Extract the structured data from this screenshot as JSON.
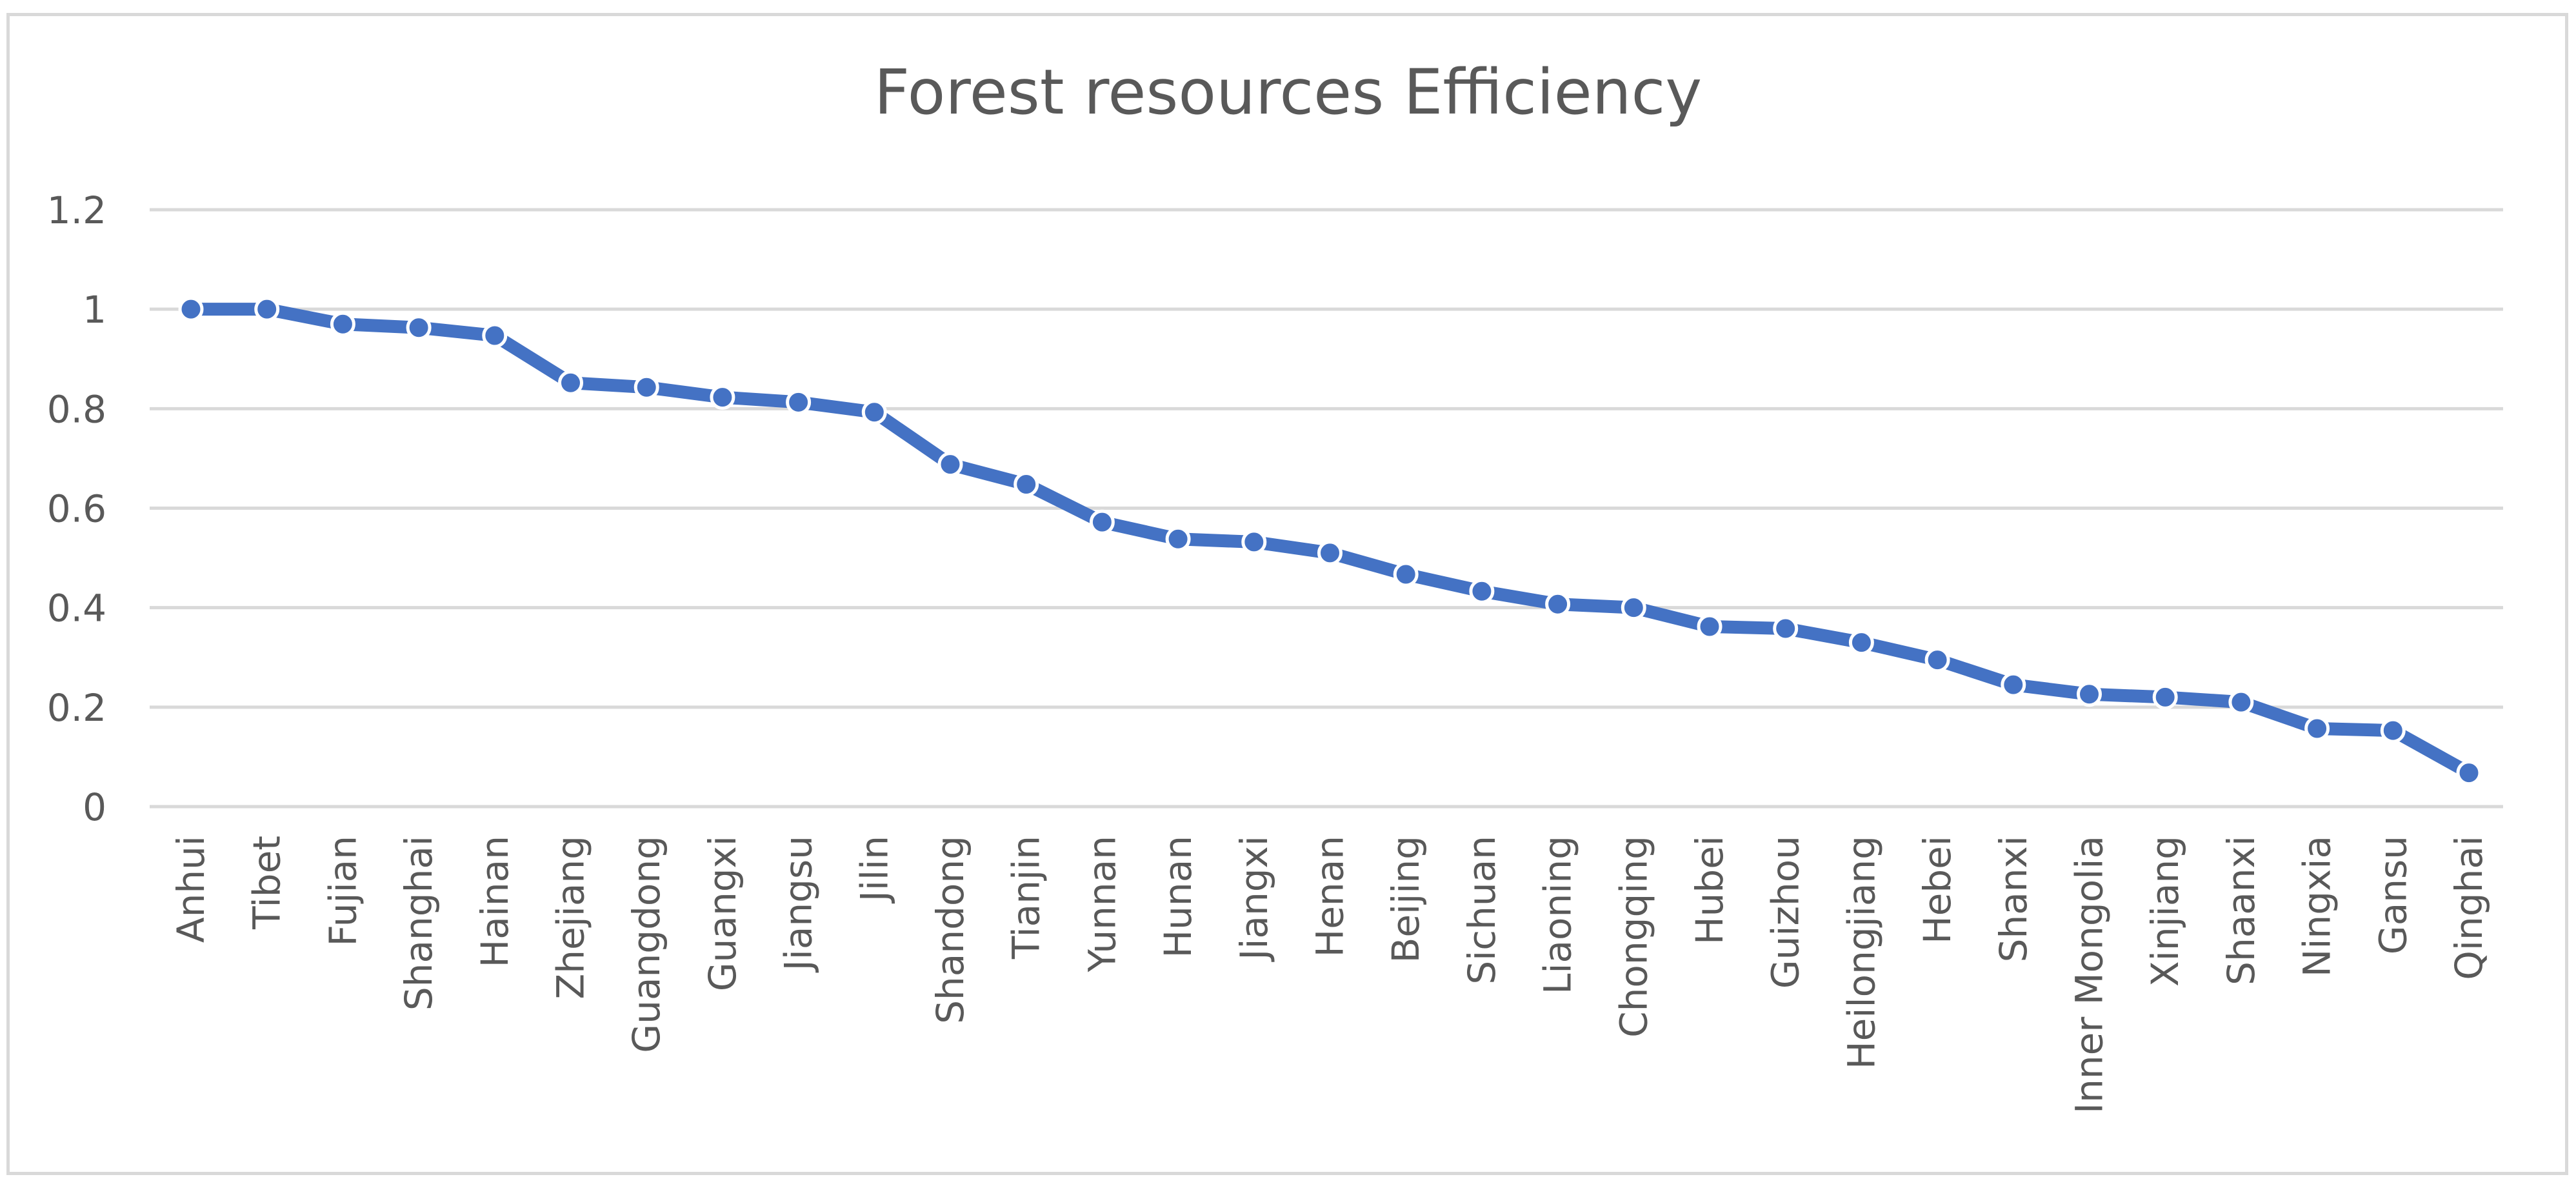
{
  "chart_data": {
    "type": "line",
    "title": "Forest resources Efficiency",
    "xlabel": "",
    "ylabel": "",
    "ylim": [
      0,
      1.2
    ],
    "yticks": [
      "0",
      "0.2",
      "0.4",
      "0.6",
      "0.8",
      "1",
      "1.2"
    ],
    "grid": true,
    "legend": "none",
    "categories": [
      "Anhui",
      "Tibet",
      "Fujian",
      "Shanghai",
      "Hainan",
      "Zhejiang",
      "Guangdong",
      "Guangxi",
      "Jiangsu",
      "Jilin",
      "Shandong",
      "Tianjin",
      "Yunnan",
      "Hunan",
      "Jiangxi",
      "Henan",
      "Beijing",
      "Sichuan",
      "Liaoning",
      "Chongqing",
      "Hubei",
      "Guizhou",
      "Heilongjiang",
      "Hebei",
      "Shanxi",
      "Inner Mongolia",
      "Xinjiang",
      "Shaanxi",
      "Ningxia",
      "Gansu",
      "Qinghai"
    ],
    "series": [
      {
        "name": "Forest resources Efficiency",
        "color": "#4472c4",
        "values": [
          1.0,
          1.0,
          0.97,
          0.963,
          0.947,
          0.852,
          0.843,
          0.823,
          0.813,
          0.793,
          0.688,
          0.648,
          0.572,
          0.538,
          0.532,
          0.51,
          0.467,
          0.433,
          0.407,
          0.4,
          0.362,
          0.358,
          0.33,
          0.295,
          0.245,
          0.226,
          0.22,
          0.21,
          0.157,
          0.153,
          0.068
        ]
      }
    ]
  }
}
